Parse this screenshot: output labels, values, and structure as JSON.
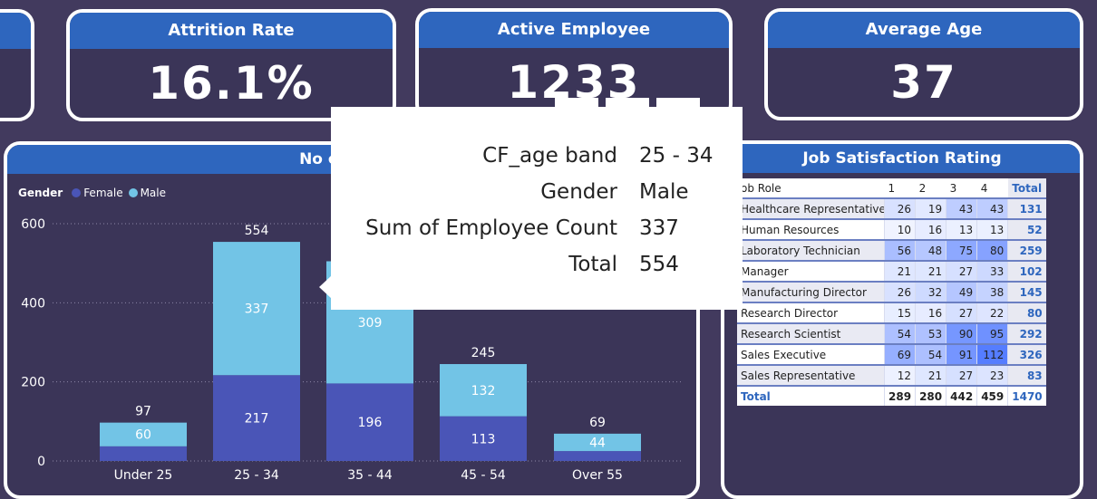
{
  "kpis": [
    {
      "title": "",
      "value": ""
    },
    {
      "title": "Attrition Rate",
      "value": "16.1%"
    },
    {
      "title": "Active Employee",
      "value": "1233"
    },
    {
      "title": "Average Age",
      "value": "37"
    }
  ],
  "chart": {
    "title": "No of Emplo",
    "legend": {
      "label": "Gender",
      "female": "Female",
      "male": "Male"
    },
    "colors": {
      "female": "#4a55b7",
      "male": "#72c4e6"
    }
  },
  "chart_data": {
    "type": "bar",
    "stacked": true,
    "categories": [
      "Under 25",
      "25 - 34",
      "35 - 44",
      "45 - 54",
      "Over 55"
    ],
    "series": [
      {
        "name": "Female",
        "values": [
          37,
          217,
          196,
          113,
          25
        ],
        "labels": [
          "",
          "217",
          "196",
          "113",
          ""
        ]
      },
      {
        "name": "Male",
        "values": [
          60,
          337,
          309,
          132,
          44
        ],
        "labels": [
          "60",
          "337",
          "309",
          "132",
          "44"
        ]
      }
    ],
    "totals": [
      "97",
      "554",
      "",
      "245",
      "69"
    ],
    "y_ticks": [
      "0",
      "200",
      "400",
      "600"
    ],
    "ylim": [
      0,
      600
    ],
    "grid": true,
    "legend_position": "top-left"
  },
  "tooltip": {
    "rows": [
      {
        "label": "CF_age band",
        "value": "25 - 34"
      },
      {
        "label": "Gender",
        "value": "Male"
      },
      {
        "label": "Sum of Employee Count",
        "value": "337"
      },
      {
        "label": "Total",
        "value": "554"
      }
    ]
  },
  "table": {
    "title": "Job Satisfaction Rating",
    "headers": [
      "ob Role",
      "1",
      "2",
      "3",
      "4",
      "Total"
    ],
    "rows": [
      {
        "role": "Healthcare Representative",
        "v": [
          "26",
          "19",
          "43",
          "43"
        ],
        "total": "131"
      },
      {
        "role": "Human Resources",
        "v": [
          "10",
          "16",
          "13",
          "13"
        ],
        "total": "52"
      },
      {
        "role": "Laboratory Technician",
        "v": [
          "56",
          "48",
          "75",
          "80"
        ],
        "total": "259"
      },
      {
        "role": "Manager",
        "v": [
          "21",
          "21",
          "27",
          "33"
        ],
        "total": "102"
      },
      {
        "role": "Manufacturing Director",
        "v": [
          "26",
          "32",
          "49",
          "38"
        ],
        "total": "145"
      },
      {
        "role": "Research Director",
        "v": [
          "15",
          "16",
          "27",
          "22"
        ],
        "total": "80"
      },
      {
        "role": "Research Scientist",
        "v": [
          "54",
          "53",
          "90",
          "95"
        ],
        "total": "292"
      },
      {
        "role": "Sales Executive",
        "v": [
          "69",
          "54",
          "91",
          "112"
        ],
        "total": "326"
      },
      {
        "role": "Sales Representative",
        "v": [
          "12",
          "21",
          "27",
          "23"
        ],
        "total": "83"
      }
    ],
    "total_row": {
      "label": "Total",
      "v": [
        "289",
        "280",
        "442",
        "459"
      ],
      "total": "1470"
    }
  }
}
